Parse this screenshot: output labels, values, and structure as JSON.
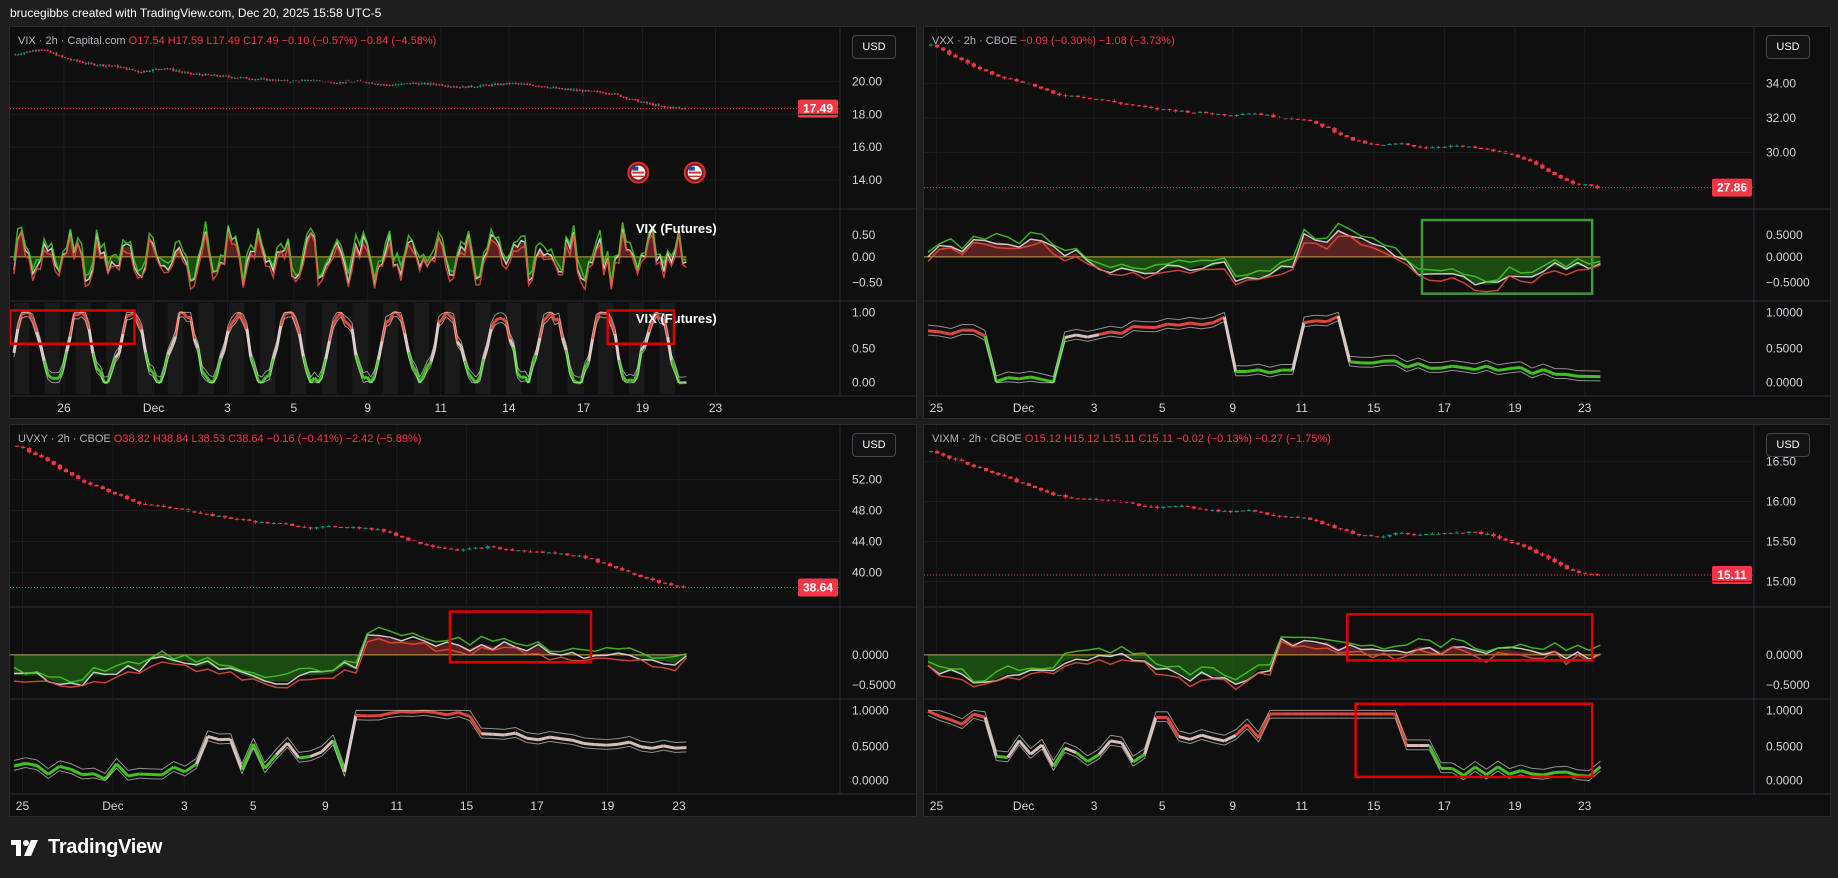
{
  "header": {
    "text": "brucegibbs created with TradingView.com, Dec 20, 2025 15:58 UTC-5"
  },
  "footer": {
    "brand": "TradingView"
  },
  "colors": {
    "up": "#089981",
    "down": "#f23645",
    "red_box": "#e00000",
    "green_box": "#3a9b3a",
    "osc_red": "#e74c3c",
    "osc_green": "#44cc22",
    "osc_white": "#e6e6e6"
  },
  "charts": [
    {
      "symbol": "VIX",
      "legend_prefix": "VIX · 2h · Capital.com",
      "legend_values": "O17.54 H17.59 L17.49 C17.49 −0.10 (−0.57%) −0.84 (−4.58%)",
      "currency": "USD",
      "last_price_label": "17.49",
      "price_ticks": [
        "20.00",
        "18.00",
        "16.00",
        "14.00"
      ],
      "osc1_ticks": [
        "0.50",
        "0.00",
        "−0.50"
      ],
      "osc2_ticks": [
        "1.00",
        "0.50",
        "0.00"
      ],
      "x_ticks": [
        "26",
        "Dec",
        "3",
        "5",
        "9",
        "11",
        "14",
        "17",
        "19",
        "23"
      ],
      "osc1_label": "VIX (Futures)",
      "osc2_label": "VIX (Futures)",
      "flag_icons": [
        "us-flag-icon",
        "us-flag-icon"
      ]
    },
    {
      "symbol": "VXX",
      "legend_prefix": "VXX · 2h · CBOE",
      "legend_values": "−0.09 (−0.30%) −1.08 (−3.73%)",
      "currency": "USD",
      "last_price_label": "27.86",
      "price_ticks": [
        "34.00",
        "32.00",
        "30.00"
      ],
      "osc1_ticks": [
        "0.5000",
        "0.0000",
        "−0.5000"
      ],
      "osc2_ticks": [
        "1.0000",
        "0.5000",
        "0.0000"
      ],
      "x_ticks": [
        "25",
        "Dec",
        "3",
        "5",
        "9",
        "11",
        "15",
        "17",
        "19",
        "23"
      ]
    },
    {
      "symbol": "UVXY",
      "legend_prefix": "UVXY · 2h · CBOE",
      "legend_values": "O38.82 H38.84 L38.53 C38.64 −0.16 (−0.41%) −2.42 (−5.89%)",
      "currency": "USD",
      "last_price_label": "38.64",
      "price_ticks": [
        "52.00",
        "48.00",
        "44.00",
        "40.00"
      ],
      "osc1_ticks": [
        "0.0000",
        "−0.5000"
      ],
      "osc2_ticks": [
        "1.0000",
        "0.5000",
        "0.0000"
      ],
      "x_ticks": [
        "25",
        "Dec",
        "3",
        "5",
        "9",
        "11",
        "15",
        "17",
        "19",
        "23"
      ]
    },
    {
      "symbol": "VIXM",
      "legend_prefix": "VIXM · 2h · CBOE",
      "legend_values": "O15.12 H15.12 L15.11 C15.11 −0.02 (−0.13%) −0.27 (−1.75%)",
      "currency": "USD",
      "last_price_label": "15.11",
      "price_ticks": [
        "16.50",
        "16.00",
        "15.50",
        "15.00"
      ],
      "osc1_ticks": [
        "0.0000",
        "−0.5000"
      ],
      "osc2_ticks": [
        "1.0000",
        "0.5000",
        "0.0000"
      ],
      "x_ticks": [
        "25",
        "Dec",
        "3",
        "5",
        "9",
        "11",
        "15",
        "17",
        "19",
        "23"
      ]
    }
  ],
  "chart_data": [
    {
      "type": "line",
      "symbol": "VIX",
      "interval": "2h",
      "last": 17.49,
      "ylim": [
        13,
        21
      ],
      "price_path": [
        20.3,
        20.6,
        20.1,
        19.8,
        19.7,
        19.4,
        19.6,
        19.3,
        19.2,
        19.1,
        19.0,
        18.9,
        18.95,
        18.85,
        18.9,
        18.7,
        18.8,
        18.75,
        18.6,
        18.7,
        18.8,
        18.7,
        18.5,
        18.4,
        18.3,
        17.9,
        17.6,
        17.49
      ]
    },
    {
      "type": "line",
      "symbol": "VXX",
      "interval": "2h",
      "last": 27.86,
      "ylim": [
        27.5,
        35
      ],
      "price_path": [
        34.8,
        34.2,
        33.6,
        33.2,
        32.9,
        32.4,
        32.3,
        32.1,
        31.9,
        31.7,
        31.6,
        31.5,
        31.4,
        31.5,
        31.3,
        31.2,
        30.8,
        30.2,
        29.9,
        30.0,
        29.8,
        29.9,
        29.8,
        29.6,
        29.3,
        28.6,
        28.1,
        27.86
      ]
    },
    {
      "type": "line",
      "symbol": "UVXY",
      "interval": "2h",
      "last": 38.64,
      "ylim": [
        38,
        56
      ],
      "price_path": [
        55.2,
        53.8,
        52.0,
        50.6,
        49.6,
        48.4,
        48.0,
        47.6,
        47.0,
        46.6,
        46.2,
        46.0,
        45.6,
        45.8,
        45.6,
        45.2,
        44.0,
        43.4,
        43.0,
        43.4,
        43.0,
        42.8,
        42.6,
        42.2,
        41.2,
        40.2,
        39.2,
        38.64
      ]
    },
    {
      "type": "line",
      "symbol": "VIXM",
      "interval": "2h",
      "last": 15.11,
      "ylim": [
        14.9,
        16.7
      ],
      "price_path": [
        16.55,
        16.45,
        16.35,
        16.25,
        16.15,
        16.05,
        16.0,
        15.98,
        15.95,
        15.9,
        15.92,
        15.88,
        15.85,
        15.86,
        15.8,
        15.78,
        15.7,
        15.6,
        15.55,
        15.6,
        15.58,
        15.6,
        15.62,
        15.55,
        15.45,
        15.3,
        15.15,
        15.11
      ]
    }
  ]
}
